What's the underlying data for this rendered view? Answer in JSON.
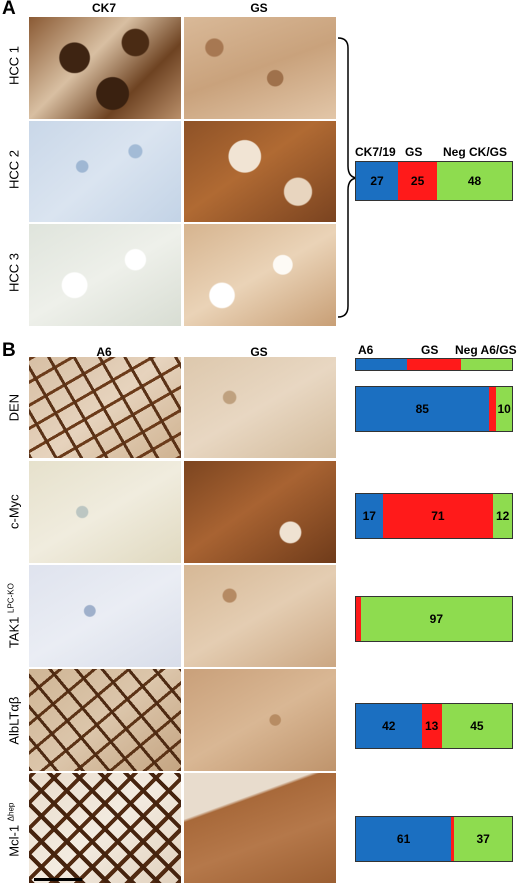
{
  "panel_a": {
    "letter": "A",
    "col_headers": [
      "CK7",
      "GS"
    ],
    "rows": [
      "HCC 1",
      "HCC 2",
      "HCC 3"
    ],
    "bar_headers": [
      "CK7/19",
      "GS",
      "Neg CK/GS"
    ]
  },
  "panel_b": {
    "letter": "B",
    "col_headers": [
      "A6",
      "GS"
    ],
    "rows": [
      {
        "label": "DEN",
        "sup": ""
      },
      {
        "label": "c-Myc",
        "sup": ""
      },
      {
        "label": "TAK1",
        "sup": "LPC-KO"
      },
      {
        "label": "AlbLTαβ",
        "sup": ""
      },
      {
        "label": "Mcl-1",
        "sup": "Δhep"
      }
    ],
    "bar_headers": [
      "A6",
      "GS",
      "Neg A6/GS"
    ]
  },
  "colors": {
    "blue": "#1b6fc1",
    "red": "#ff1a1a",
    "green": "#8edc4f",
    "ck7_stain": "#6a3e1c",
    "gs_stain": "#b9835a",
    "neg_stain_a": "#cfdbe8",
    "neg_stain_b": "#e7e2d5"
  },
  "chart_data": [
    {
      "type": "bar",
      "orientation": "horizontal-stacked",
      "categories": [
        "HCC"
      ],
      "series": [
        {
          "name": "CK7/19",
          "values": [
            27
          ],
          "color": "#1b6fc1"
        },
        {
          "name": "GS",
          "values": [
            25
          ],
          "color": "#ff1a1a"
        },
        {
          "name": "Neg CK/GS",
          "values": [
            48
          ],
          "color": "#8edc4f"
        }
      ]
    },
    {
      "type": "bar",
      "orientation": "horizontal-stacked",
      "categories": [
        "DEN",
        "c-Myc",
        "TAK1 LPC-KO",
        "AlbLTαβ",
        "Mcl-1 Δhep"
      ],
      "series": [
        {
          "name": "A6",
          "values": [
            85,
            17,
            0,
            42,
            61
          ],
          "color": "#1b6fc1"
        },
        {
          "name": "GS",
          "values": [
            5,
            71,
            3,
            13,
            2
          ],
          "color": "#ff1a1a"
        },
        {
          "name": "Neg A6/GS",
          "values": [
            10,
            12,
            97,
            45,
            37
          ],
          "color": "#8edc4f"
        }
      ],
      "printed_labels": [
        [
          "85",
          "",
          "10"
        ],
        [
          "17",
          "71",
          "12"
        ],
        [
          "",
          "",
          "97"
        ],
        [
          "42",
          "13",
          "45"
        ],
        [
          "61",
          "",
          "37"
        ]
      ]
    }
  ]
}
